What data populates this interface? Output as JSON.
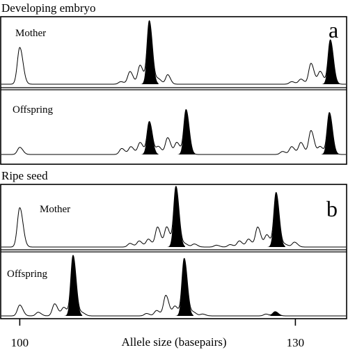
{
  "chart_data": {
    "type": "line",
    "description_text": {
      "section_a": "Developing embryo",
      "section_b": "Ripe seed",
      "panel_letter_a": "a",
      "panel_letter_b": "b"
    },
    "xlabel": "Allele size (basepairs)",
    "x_ticks": [
      100,
      130
    ],
    "xlim": [
      98,
      135.5
    ],
    "panels": [
      {
        "label": "Mother",
        "section": "a",
        "peaks": [
          {
            "x": 100.0,
            "h": 0.58,
            "w": 0.26,
            "filled": false
          },
          {
            "x": 111.0,
            "h": 0.04,
            "w": 0.25,
            "filled": false
          },
          {
            "x": 112.0,
            "h": 0.2,
            "w": 0.25,
            "filled": false
          },
          {
            "x": 113.1,
            "h": 0.3,
            "w": 0.25,
            "filled": false
          },
          {
            "x": 114.1,
            "h": 1.0,
            "w": 0.25,
            "filled": true
          },
          {
            "x": 115.1,
            "h": 0.08,
            "w": 0.25,
            "filled": false
          },
          {
            "x": 116.1,
            "h": 0.15,
            "w": 0.22,
            "filled": false
          },
          {
            "x": 129.6,
            "h": 0.04,
            "w": 0.25,
            "filled": false
          },
          {
            "x": 130.6,
            "h": 0.08,
            "w": 0.25,
            "filled": false
          },
          {
            "x": 131.7,
            "h": 0.33,
            "w": 0.25,
            "filled": false
          },
          {
            "x": 132.7,
            "h": 0.2,
            "w": 0.25,
            "filled": false
          },
          {
            "x": 133.8,
            "h": 0.7,
            "w": 0.25,
            "filled": true
          }
        ]
      },
      {
        "label": "Offspring",
        "section": "a",
        "peaks": [
          {
            "x": 100.0,
            "h": 0.12,
            "w": 0.25,
            "filled": false
          },
          {
            "x": 111.1,
            "h": 0.1,
            "w": 0.25,
            "filled": false
          },
          {
            "x": 112.1,
            "h": 0.13,
            "w": 0.25,
            "filled": false
          },
          {
            "x": 113.1,
            "h": 0.2,
            "w": 0.25,
            "filled": false
          },
          {
            "x": 114.1,
            "h": 0.55,
            "w": 0.25,
            "filled": true
          },
          {
            "x": 115.1,
            "h": 0.13,
            "w": 0.25,
            "filled": false
          },
          {
            "x": 116.1,
            "h": 0.28,
            "w": 0.25,
            "filled": false
          },
          {
            "x": 117.1,
            "h": 0.2,
            "w": 0.25,
            "filled": false
          },
          {
            "x": 118.1,
            "h": 0.75,
            "w": 0.25,
            "filled": true
          },
          {
            "x": 128.6,
            "h": 0.05,
            "w": 0.25,
            "filled": false
          },
          {
            "x": 129.6,
            "h": 0.13,
            "w": 0.25,
            "filled": false
          },
          {
            "x": 130.6,
            "h": 0.2,
            "w": 0.25,
            "filled": false
          },
          {
            "x": 131.7,
            "h": 0.4,
            "w": 0.25,
            "filled": false
          },
          {
            "x": 132.7,
            "h": 0.13,
            "w": 0.25,
            "filled": false
          },
          {
            "x": 133.7,
            "h": 0.7,
            "w": 0.25,
            "filled": true
          }
        ]
      },
      {
        "label": "Mother",
        "section": "b",
        "peaks": [
          {
            "x": 100.0,
            "h": 0.65,
            "w": 0.26,
            "filled": false
          },
          {
            "x": 112.0,
            "h": 0.06,
            "w": 0.25,
            "filled": false
          },
          {
            "x": 113.0,
            "h": 0.1,
            "w": 0.25,
            "filled": false
          },
          {
            "x": 114.0,
            "h": 0.13,
            "w": 0.25,
            "filled": false
          },
          {
            "x": 115.0,
            "h": 0.33,
            "w": 0.25,
            "filled": false
          },
          {
            "x": 116.0,
            "h": 0.33,
            "w": 0.25,
            "filled": false
          },
          {
            "x": 117.0,
            "h": 1.0,
            "w": 0.25,
            "filled": true
          },
          {
            "x": 118.0,
            "h": 0.05,
            "w": 0.25,
            "filled": false
          },
          {
            "x": 119.0,
            "h": 0.05,
            "w": 0.25,
            "filled": false
          },
          {
            "x": 121.4,
            "h": 0.03,
            "w": 0.25,
            "filled": false
          },
          {
            "x": 122.9,
            "h": 0.04,
            "w": 0.25,
            "filled": false
          },
          {
            "x": 123.9,
            "h": 0.1,
            "w": 0.25,
            "filled": false
          },
          {
            "x": 124.9,
            "h": 0.13,
            "w": 0.25,
            "filled": false
          },
          {
            "x": 125.9,
            "h": 0.33,
            "w": 0.25,
            "filled": false
          },
          {
            "x": 126.9,
            "h": 0.2,
            "w": 0.25,
            "filled": false
          },
          {
            "x": 127.9,
            "h": 0.9,
            "w": 0.25,
            "filled": true
          },
          {
            "x": 128.9,
            "h": 0.04,
            "w": 0.25,
            "filled": false
          },
          {
            "x": 129.9,
            "h": 0.08,
            "w": 0.25,
            "filled": false
          }
        ]
      },
      {
        "label": "Offspring",
        "section": "b",
        "peaks": [
          {
            "x": 100.0,
            "h": 0.18,
            "w": 0.25,
            "filled": false
          },
          {
            "x": 102.0,
            "h": 0.06,
            "w": 0.25,
            "filled": false
          },
          {
            "x": 103.8,
            "h": 0.2,
            "w": 0.25,
            "filled": false
          },
          {
            "x": 104.8,
            "h": 0.14,
            "w": 0.25,
            "filled": false
          },
          {
            "x": 105.8,
            "h": 1.0,
            "w": 0.25,
            "filled": true
          },
          {
            "x": 106.8,
            "h": 0.05,
            "w": 0.25,
            "filled": false
          },
          {
            "x": 113.8,
            "h": 0.04,
            "w": 0.25,
            "filled": false
          },
          {
            "x": 114.9,
            "h": 0.09,
            "w": 0.25,
            "filled": false
          },
          {
            "x": 115.9,
            "h": 0.34,
            "w": 0.25,
            "filled": false
          },
          {
            "x": 116.9,
            "h": 0.16,
            "w": 0.25,
            "filled": false
          },
          {
            "x": 117.9,
            "h": 0.95,
            "w": 0.25,
            "filled": true
          },
          {
            "x": 118.9,
            "h": 0.06,
            "w": 0.25,
            "filled": false
          },
          {
            "x": 119.9,
            "h": 0.03,
            "w": 0.25,
            "filled": false
          },
          {
            "x": 126.8,
            "h": 0.03,
            "w": 0.25,
            "filled": false
          },
          {
            "x": 127.8,
            "h": 0.07,
            "w": 0.25,
            "filled": true
          }
        ]
      }
    ]
  }
}
